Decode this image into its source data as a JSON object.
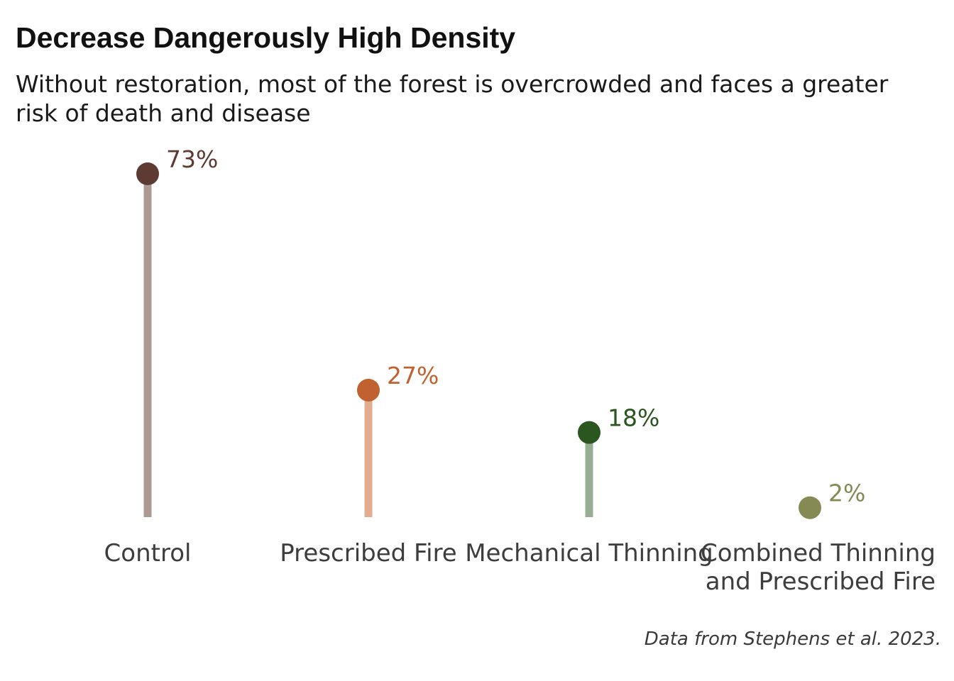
{
  "chart_data": {
    "type": "lollipop",
    "title": "Decrease Dangerously High Density",
    "subtitle": "Without restoration, most of the forest is overcrowded and faces a greater risk of death and disease",
    "caption": "Data from Stephens et al. 2023.",
    "xlabel": "",
    "ylabel": "",
    "ylim": [
      0,
      73
    ],
    "grid": false,
    "categories": [
      [
        "Control"
      ],
      [
        "Prescribed Fire"
      ],
      [
        "Mechanical Thinning"
      ],
      [
        "Combined Thinning",
        "and Prescribed Fire"
      ]
    ],
    "values": [
      73,
      27,
      18,
      2
    ],
    "value_labels": [
      "73%",
      "27%",
      "18%",
      "2%"
    ],
    "dot_colors": [
      "#5e3b32",
      "#c0612f",
      "#2b5620",
      "#858a55"
    ],
    "stem_colors": [
      "#ad9a92",
      "#e1ac90",
      "#97ae93",
      "#bfc3a2"
    ]
  }
}
